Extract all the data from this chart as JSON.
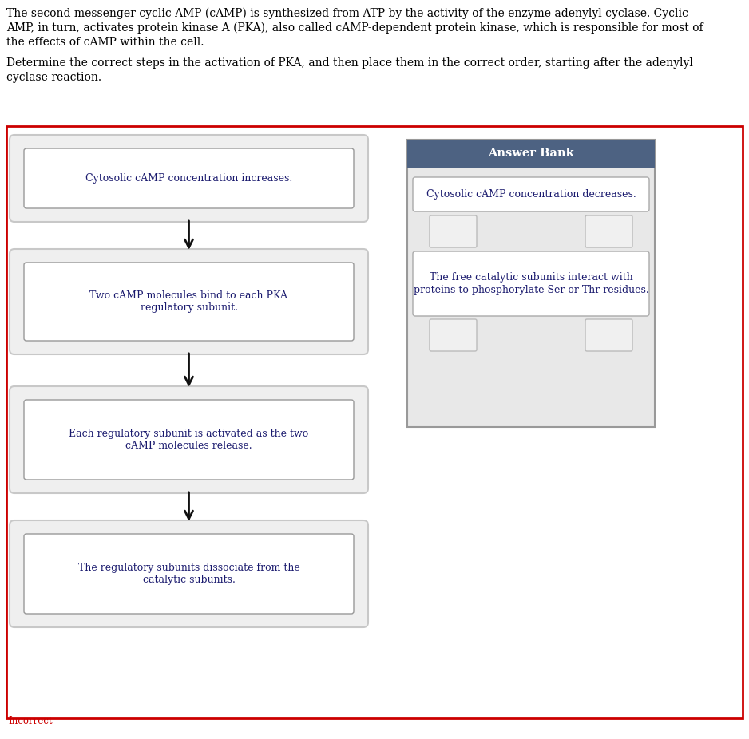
{
  "title_line1": "The second messenger cyclic AMP (cAMP) is synthesized from ATP by the activity of the enzyme adenylyl cyclase. Cyclic",
  "title_line2": "AMP, in turn, activates protein kinase A (PKA), also called cAMP-dependent protein kinase, which is responsible for most of",
  "title_line3": "the effects of cAMP within the cell.",
  "question_line1": "Determine the correct steps in the activation of PKA, and then place them in the correct order, starting after the adenylyl",
  "question_line2": "cyclase reaction.",
  "flow_steps": [
    "Cytosolic cAMP concentration increases.",
    "Two cAMP molecules bind to each PKA\nregulatory subunit.",
    "Each regulatory subunit is activated as the two\ncAMP molecules release.",
    "The regulatory subunits dissociate from the\ncatalytic subunits."
  ],
  "answer_bank_title": "Answer Bank",
  "answer_bank_item1": "Cytosolic cAMP concentration decreases.",
  "answer_bank_item2": "The free catalytic subunits interact with\nproteins to phosphorylate Ser or Thr residues.",
  "incorrect_label": "Incorrect",
  "bg_color": "#ffffff",
  "outer_border_color": "#cc0000",
  "flow_outer_fill": "#efefef",
  "flow_outer_edge": "#c8c8c8",
  "flow_inner_fill": "#ffffff",
  "flow_inner_edge": "#999999",
  "flow_text_color": "#1a1a6e",
  "answer_bank_header_fill": "#4d6282",
  "answer_bank_header_text": "#ffffff",
  "answer_bank_body_fill": "#e8e8e8",
  "answer_bank_border": "#999999",
  "answer_item_fill": "#ffffff",
  "answer_item_border": "#aaaaaa",
  "answer_text_color": "#1a1a6e",
  "empty_box_fill": "#f0f0f0",
  "empty_box_border": "#bbbbbb",
  "incorrect_color": "#cc0000",
  "arrow_color": "#111111"
}
